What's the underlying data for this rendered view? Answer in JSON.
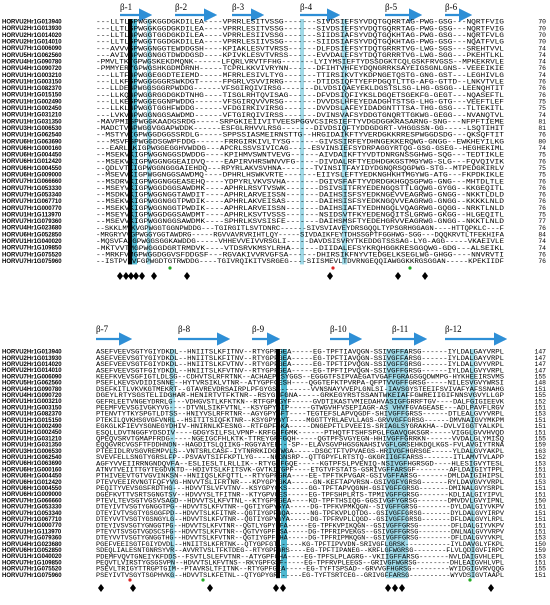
{
  "names": [
    "HORVU2Hr1G013940",
    "HORVU2Hr1G013930",
    "HORVU2Hr1G014020",
    "HORVU2Hr1G014010",
    "HORVU7Hr1G006090",
    "HORVU5Hr1G062560",
    "HORVU4Hr1G090780",
    "HORVU4Hr1G090720",
    "HORVU1Hr1G003210",
    "HORVU1Hr1G003150",
    "HORVU1Hr1G082370",
    "HORVU1Hr1G015150",
    "HORVU1Hr1G002490",
    "HORVU1Hr1G002450",
    "HORVU1Hr1G031210",
    "HORVU1Hr1G031350",
    "HORVU3Hr1G006530",
    "HORVU1Hr1G062540",
    "HORVU6Hr1G063690",
    "HORVU6Hr1G000160",
    "HORVU6Hr1G004450",
    "HORVU6Hr1G012420",
    "HORVU6Hr1G004550",
    "HORVU6Hr1G009000",
    "HORVU7Hr1G066660",
    "HORVU7Hr1G053330",
    "HORVU7Hr1G053340",
    "HORVU7Hr1G067710",
    "HORVU7Hr1G000770",
    "HORVU1Hr1G113970",
    "HORVU7Hr1G079360",
    "HORVU4Hr1G023680",
    "HORVU6Hr1G052850",
    "HORVU1Hr1G040020",
    "HORVU7Hr1G109850",
    "HORVU7Hr1G075520",
    "HORVU7Hr1G075960"
  ],
  "blocks": [
    {
      "strands": [
        "β-1",
        "β-2",
        "β-3",
        "β-4",
        "β-5",
        "β-6"
      ],
      "sequences": [
        "---LLTLGPWGGKGGDGKDILEA----VPRRLESITVSSG-------SIVDSIEFSYVDQTGQRRTAG-PWG-GSG---NQRTFVIG",
        "---LLTLGPWGGKGGDGKDILEA----VPRRLESITVSSG-------SIVDSIEFSYVDQTGQRRTAG-PWG-GSG---NQRTFVIG",
        "---LLTLGPWGGTGGDGKDILEA----VPRRLESIIVSSG-------SIIDSIAFSYVDQTGQKHTAG-PWG-GSG---NQRTFVLG",
        "---LLTLGPWGGTGGDGKDILEA----VPRRLESIIVSSG-------SIIDSIAFSYVDQTGQKHTAG-PWG-GSG---NQATFVLG",
        "---AVVVGPWGGNGGTEWDDGSH----KPIAKLESVTVRSS------DLFDSIEFSYTDQTGRRRTVG-LWG-SGS---SREHTVVL",
        "---AVIVGPWGGNGGTDWDDGSD----KPIVKLESVTVRSS------EVVDALEFSYTDQTGRRRTVG-LWG-SGG---PKEHTLKL",
        "-PMVLTKTGPWGSKEKDMQNK------LFQRLVRVTFFHG-------LYIYMSIEFTYDSSDGKTCQLGSKFRVGSS--MPKEKRVLE",
        "-PMMYERYGPWGSHKGDMDRNH-----TCPRLKKVIVRYNN------DFIHTVHFEYDQNGRRKSAYEIGSGNLGNS--VEEEIKIE",
        "---LLTFGPWGGEGGDTEIEMD-----MFRRLESIVLTYG-------TTIRSIKVTYKDPNGETQSTG-GNG-GST---LEGHIVLG",
        "---LLKFGPWGGGGGRSWKDGT-----FPGRLVSVVIRRG-------DTIDSIQFTYEFPDGQTLTTG-AFG-GTTD--LNKVTVLE",
        "---LLDEGPWGGSGGRPWDDG------VFSGIRQIVIRSG-------DLVDSIQAEYEKLDGSTSLSG-LHG-GSGG--LEENQHTIT",
        "---LLKQGPWGGRGGDGKDTNHG----TISGLRHTQVISAG------DFVDSIQFIYKSLDGQETSGEKFG-GEGT---NQASEFTL",
        "---LLKEGPWGGEGGNPWDDG------VFSGIRQVVVRSG-------DVVDSLHFEYEDADGHTSTSG-LHG-GTG---VEEFTLEF",
        "---LLKLGPWGGTGGHFWDDG------VFDGIRKIVIRSG-------DVVDSLAFEYIDADGNTTTSA-THG-GSG---TLTEKITL",
        "---LVKVGPWGGNGGSAWDMD------VFTGIRQIVIRSS-------DVINSVAFSYDDGTGNQRTTGKWG-GEGG---NVANQTVL",
        "-MAVPMIGPWGGKAADGSRDG-----SRPGKIEIIVITVEESPGGVCSIRSIEFTYVDGDGGKRASARNG-SNG---NFPFTIEME",
        "-MADCTVGPWGGVGGAPWDDK------ESFGLRHVVLRSG-------DIVDSIQFTYDDGDGRT-VHGGSSN-GG-----LSQTIHIT",
        "--MSTYVIGPWGGDGGSSRDLG-----SPPSSIASMEIRNSTTG--HRGIDAIKFTYVERDGKKRRESPWGGDSDG---QKSQFTIT",
        "---MSVFGPWGGDSGWPFDDG------FRRGIRKIVLTYSG------GIVSSIRFEYDHNGEKKERQWG-GNGG--EWKHEYILKG",
        "---EARLAKIGPWGGEGGHVWDDG---APCRLSSVSIVICAG-----ESVINSIEFSYDRPAGGYRTQG-GSG-GSEG--HEGHEKIML",
        "--MSEKVKIGPWGGNGGSDWDDG----KPIHMVSWNTVEVG------AIVDAIKFTYVDTDNRGNSSGHWG-SQG---TEDTIKLE",
        "--MSEKVKIGPWGGNGGEAIDVQ----EAPIRVHRSWNVVFG-----DIVDALRFTYEDHDGKGSTMGYWG-SLG---FQVQIVIK",
        "--QDLVTKIGPWGGNGGGAIEHDQ---RPYRLAKVSVHNA-------TVINSITFAYIDYDGNQRSQGPWG-STG--MTPEDGKIRLV",
        "--MSEVVKIGPWGGNGGSAWDMQ----DPHRLHSWKVRTE-------EIIYSLEFTYEDKNGHKHTMGYWG-ATG---FKPDKIKLE",
        "--MSDRVKIGPWGGNGGEASEHQ----YDPYRLVKVSVHA-------DGIVSFAFTYVDRDGKHGQSGPWG-GNG---MHTDLTLE",
        "--MSEYVKIGPWGGDGGSAWDMK----APHRLRSVTVSWK-------DSIVSITFRYEDENGQSTTLGQWG-GYGG--KKGEQITL",
        "--MSDKVKIGPWGGNGGTAWDIT----APHRLARVEISSN-------DAIHSISFSYEDKNGEVVEAGRWG-GNGG--NKKTLDLD",
        "--MSEKVKIGPWGGNGGTPWDIK----APHRLAKVEISAS-------DAIHSISFSYEDKNGQVVEAGRWG-GNGG--KKKKLNLD",
        "--MSEKVKIGPWGGNGGTPWDIK----APHRLARVEISSN-------DAIHSIAFTYEDHNGQLVQAGRWG-GQGG--NRKTLNLD",
        "--MSEYVKIGPWGGDGGSAWDMT----APHRLKSVTVSSS-------NSIDSVTFKYEDENGQITSLGRWG-GKGG--HLGEQITL",
        "--MSEVVKIGPWGGNGGSAWDMK----SPHRLKSVSISFE-------DAIHSMSFTYEDEHGRVVEAGRWG-GNGG--NKKTLNLD",
        "--SKKLMVKVGPWGGTGGNPWDDG---TGIRGITLSVTDNRC------SIVSVIAVEYDRSGQQLTYPSGRHGGAGN----HTTQPKLC---F",
        "-MRGRYVVGPWGGYGGTAWDRG-----RGVVAVRVRIHTLQY-----SIVDAIKFEYTDHSSGPTFGGHWG-SGG---DQQKRVTLTFEKHIFA",
        "-MQSVFAVGPWGGSGGKAWDDG-----VHHEVVEIVVRSGLI-----DAVDSISVRYTKEDDGTSSSAG-LYG-AGG-----VKAEIVLE",
        "-MKTVVTMGPWGGGDGRTRMDVK----VTDSRVKMSYLRHA------DIIDALEFSYKRQHGGKRESGGQWG-GDG---ALSEIKL",
        "--MRKFVMGPWGGDGGVSFDDGSF---RGVAKIVVRVGFSA------DHIRSIKFNYVTEDGELKSEGLWG-GHGG----NNVRVTI",
        "--ISTPVRVFGPWGDTGTRWDDG----TGIVRQIKITVSRGEG----SIISMEVLTDVRNGEQQIAWGGKKRGSGGAN-----KPEKIIDF"
      ],
      "ends": [
        70,
        70,
        70,
        70,
        74,
        74,
        74,
        76,
        74,
        76,
        76,
        76,
        75,
        75,
        74,
        81,
        81,
        76,
        80,
        74,
        75,
        76,
        75,
        75,
        76,
        76,
        76,
        76,
        76,
        75,
        77,
        76,
        84,
        74,
        74,
        76,
        76
      ]
    },
    {
      "strands": [
        "β-7",
        "β-8",
        "β-9",
        "β-10",
        "β-11",
        "β-12"
      ],
      "sequences": [
        "ASEFVEEVSGTYGIYDKDL--HNIITSLKFITNV--RTYGPFGEA-----EG-TPFTIAVQGN-SSIVGFFARSG------IYLDALGAYVRPL",
        "ASEFVEEVSGTYGIYDKDL--HNIITSLKFITNV--RTYGPFGEA-----EG-TPFTIAVQGN-SSIVGFFARSG------IYLDALGAYVRPL",
        "ASEFVEEVSGTFGIYDKDL--HNIITSLKFVTNV--RTYGPFGEA-----EG-TPFTIPVQGN-SSIVGFFGRSG------IYLDALGVYVRPL",
        "ASEFVEEVSGTFGIYDKDL--HNIITSLKFVTNV--RTYGPFGEA-----EG-TPFTIPVQGN-SSIVGFFGRSG------IYLDALGVYVRPL",
        "KEEFKVEVSGFIGTLDLSG--CDHVTSLRFRTNK--ACHAEPRSYGGS--EGGGTFSIPVAEGATVGAFFGRAGSGQDWMPG-HYKHEEIRSVMS",
        "PSEFLKEVSVDIDISNNE--HYTVRSIKLVTNR--ATYGPFGESH----QGGTEFKTPVRPA-QFPTVVGFFGRSG-----NILESVGVYWRSI",
        "DSEFKITLVKVKGTMEKRT--GTAVREVDRSAIRPLPFGYGSS-------VVNSNAYVVEPLGNLSI-IAVSGYSTEEIFSVIVAFYAFSSNAHG",
        "DGEYLRTYSGSTELIDGHAR-HENIRTVTFKTNR--RSYGPFGNA-----GRKEGYRSTSSANTWKEIAFFGWREIIGIFNNSVGVYLLGP",
        "GEFRLEETVNGEYDRRLG---VDHGVSTLKFKTKN--RTFGPFGYF-----GVDTIKASTVMIEDAHVASIGFGRRFTGV----DALFGIGIEEVK",
        "PEEMFVEVSGIVGKYVG----DTVNLSIKFVTNL--KSYGPYGIP-----GTWGVHFVSEPIAGR-AS VHVFGVAGEASE---ADLPAVFLRGV",
        "PTENVTYTKYSPGTLDTSS--HNIYVSLRFRTNR--AGYGPYGFT----TEGTEFSLAPVQGDF-SHIVGFFGRSS------DTLEALGVYVRPL",
        "PTEKILQVKHSGVGFVNRL--HSITITSIQFKTNR--KSYGPYGYT----MGGTTYRLAEVLLAGS-GRVVGFFGRSG------DMVNAIGVYMKPM",
        "EGKGLKFIEVYSGNEGYDHIV-HNIRNLKFESNG--RTFGPFGKA-----DNGEPFTLPVEEIS-SRIAGLSYGRAKHA--DVLVIGGTYALKPL",
        "ESQLLDVTNGGFYDSDIV----GDGYSILFSLVPNP-KRFGPFGMK------PTHQTFTSHFSPGLFGAVQGKSGR-----VIGGLGVVHVQD",
        "QPEQVSRVTGMAPFRDG-----NGEIGCFHLKTK-TTREYGPFGQH-----QGTPFSVGYEGN-HHIVGFFGRRKN------VVDALGLYMISQ",
        "EQQGVRCVGSFTFDDHNDN--HAGDITSLQIIKG-RGGYAYEE---SP--ELAVSGVPHGSGNAHSIVGFLGRSEHKDQLKGS-FVLAVGIYTRNA",
        "PTEEIDLRVSGVREMPVLS--VNTSRLCASF-IYTNRRKIDGYWGA-----DSGCTFTVPVAEGS-HRIVGFHGRSGE-----YLDALGVYAKPL",
        "SVEVFELLSNGTYGRSLFP--PSVAVTSIFFKPTLYG----NRGNSRP--QTTGPYFLRTSTQ-GKGRIIGFFARSS-------ITLAMVTVLAPP",
        "AGFYVVEIIRRNGNDQVFA--ESLIESLTLRLLIK--RTYGPFGQE-----KGTPFSLPVENIQ-NSIVGFHGRSGD----HLESIGVYTESL",
        "ATNVTVEIITTGYTEGDVKTD--HDIVTSLKFITSVK-GVTKIYGPF----ETGTVFSTATS-GSRIVGFFARSGF--------AFLDAIGIYTPPL",
        "PTHIVEEVTGTVGVINKSN--HNIIQSLKFQTTL--RTYGPFGRA----EE-TPFTKPVGAR-GSIVGFFARSG-------DMLDAIGIHIPSL",
        "PTEVVEEIRVNGTFQFYVG-HNVVTSLIFRTNR---KPYGPYGKA-----GN-KEFTAPVRSN-GSIVGFYGRSG------RYLDAVGVYVRPL",
        "PEQITYVEVSGSFRDTHG---HDVVTSLVFVTNV--KSYGPYGKS-----GG-TPFTAPVQGNH-GSIVGFFGRSG-------DMINALGVYSRPL",
        "DGEFKVTTVSRTSGNGTSV--HDVVYSLTFITNR--KTYGPVGES-----EG-TPFSHPLRTS-TPMIVGFFGRSG-------KDLIALGIYIPVL",
        "PTEVLTEVSGTVGSVSAGD--HDVVTSLKFVTNL--KTYGPFGEA----KD-TPFTHSIQG-GGSIVGFYGRSG-------DMVDVLGVYIPNL",
        "DTEYIVTVSGTYGNGGTPG--HDVVTSLKFVTNR--QGTIYGPYGYA-----DG-TPFKVPMKQGN--SIVGFFGRSG--------DYLDALGIYVKPV",
        "DTEYIVTVSGTYGSGGFPD--HDVVTSLKFITNR--QGTIYGPFGQA-----NG-TPFKVPLQTDG--GSIVGFFGRSG-------DYLDALGVYIRPV",
        "DTEYVVTVSGTYGSNGYLG--HDVVTSLKFVTNR--QGTIYGPYGYA-----DG-TPFRVPLLQGD--GSIVGFFGRSG-------DFLDALGVYLRPL",
        "DTEYIVSVSGTYGNGGTPG--HDVVTSLKFVTNR--QGTLYGPYGFA-----EG-TPFKVPIKQGN--GSIVGFFGRSG--------DFLDALGIYVKPV",
        "PTEYVTSVSGTVGDSCSFG--HDVVTSLKFVTNR--QGTVYGPFGSA-----DG-TPFRIPVEKGS--GSIVGFFGRSG--------DNLNALGVYVRPV",
        "DTEYVVTVSGTYGNGGTHG--HDVVTSLKFVTNR--QGTIYGPFGHA-----DG-TPFRIPMKQGN--GSIVGFFGRSG--------DFLDALGVYVKPL",
        "PGEFVEEISGTFGIYDVDL--HNIITSLKFRTNK--QTYGPFGTL-----KG-TPFTIPVVDN-SRIVGFLGRSK-----------IYLDAVGLYFKPL",
        "SDEQLIALESNTGNRSYVR--AVVRTVSLTFKTDEG--RTYGPFGRS----EG-TPFTIPANEG--KRFLGFWGRSG--------FLVLQDIGVFIRPC",
        "PDEMFVQVTGNEIYKFDDS--FSVTLSLEFVTNR--ATYGPFGHA----EG-TPFSLPLAGRG--VKIIGFFARSG-------NVLDAIGVHLEPL",
        "PEQVTLVIRSTYGSGSVPN--HDVVTSLKFVTNS--RKYGPFGSF-----EG-TPFRVPLEEGS--GRIVGFWGRSG--------DHLEAIGVHLVPL",
        "PSEVLTRIGYTTRGPTGIM--PTAVRSLTFITNK--RTYGPFGEA-----EG-TYFTSPSAD--GRVVGFHGRSG---------WYIDGIGVRVQQG",
        "PSEYIVTVSGYTSGPHVKG--HDVVTSLKFETNL--QTYGPYGRT-----EG-TYFTSRTCEG--GRIVGFFARSG----------WYVDSIGVTAAPL"
      ],
      "ends": [
        147,
        147,
        147,
        147,
        155,
        148,
        151,
        155,
        152,
        151,
        153,
        151,
        151,
        151,
        155,
        159,
        163,
        152,
        153,
        151,
        151,
        153,
        151,
        151,
        150,
        151,
        151,
        151,
        151,
        151,
        153,
        150,
        159,
        153,
        151,
        155,
        151
      ]
    }
  ]
}
